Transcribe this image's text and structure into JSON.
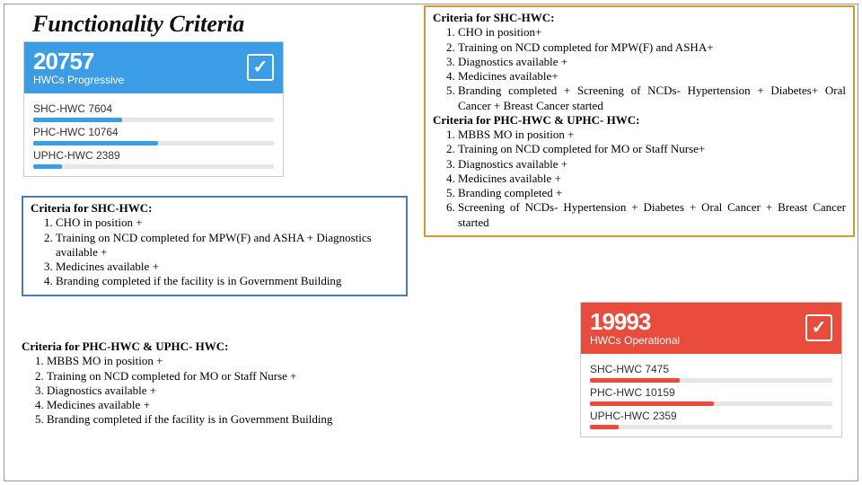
{
  "title": "Functionality Criteria",
  "criteria_tr": {
    "section1_heading": "Criteria for SHC-HWC:",
    "section1_items": [
      "CHO in position+",
      "Training on NCD completed for MPW(F) and ASHA+",
      "Diagnostics available +",
      "Medicines available+",
      "Branding completed + Screening of NCDs- Hypertension + Diabetes+ Oral Cancer + Breast Cancer started"
    ],
    "section2_heading": "Criteria for PHC-HWC & UPHC- HWC:",
    "section2_items": [
      "MBBS MO in position +",
      "Training on NCD completed for MO or Staff Nurse+",
      "Diagnostics available +",
      "Medicines available +",
      "Branding completed +",
      "Screening of NCDs- Hypertension + Diabetes + Oral Cancer + Breast Cancer started"
    ]
  },
  "card_progressive": {
    "banner_color": "#3b9de6",
    "total": "20757",
    "subtitle": "HWCs Progressive",
    "rows": [
      {
        "label": "SHC-HWC 7604",
        "pct": 37,
        "color": "#3b9de6"
      },
      {
        "label": "PHC-HWC 10764",
        "pct": 52,
        "color": "#3b9de6"
      },
      {
        "label": "UPHC-HWC 2389",
        "pct": 12,
        "color": "#3b9de6"
      }
    ]
  },
  "card_operational": {
    "banner_color": "#e94b3c",
    "total": "19993",
    "subtitle": "HWCs Operational",
    "rows": [
      {
        "label": "SHC-HWC 7475",
        "pct": 37,
        "color": "#e94b3c"
      },
      {
        "label": "PHC-HWC 10159",
        "pct": 51,
        "color": "#e94b3c"
      },
      {
        "label": "UPHC-HWC 2359",
        "pct": 12,
        "color": "#e94b3c"
      }
    ]
  },
  "criteria_ml": {
    "heading": "Criteria for SHC-HWC:",
    "items": [
      "CHO in position +",
      "Training on NCD completed for MPW(F) and ASHA + Diagnostics available +",
      "Medicines available +",
      "Branding completed if the facility is in Government Building"
    ]
  },
  "criteria_bl": {
    "heading": "Criteria for PHC-HWC & UPHC- HWC:",
    "items": [
      "MBBS MO in position +",
      "Training on NCD completed for MO or Staff Nurse +",
      "Diagnostics available +",
      "Medicines available +",
      "Branding completed if the facility is in Government Building"
    ]
  },
  "style": {
    "bar_track_color": "#e6e6e6",
    "border_orange": "#d29a2b",
    "border_blue": "#4a7db8"
  }
}
